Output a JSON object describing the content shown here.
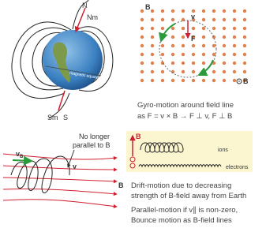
{
  "earth_panel": {
    "north": "N",
    "north_magnetic": "Nm",
    "south_magnetic": "Sm",
    "south": "S",
    "equator": "magnetic equator"
  },
  "gyro_panel": {
    "field": "B",
    "velocity": "v",
    "force": "F",
    "legend": "B",
    "caption_lines": [
      "Gyro-motion around field line",
      "as F = v × B → F ⊥ v, F ⊥ B"
    ]
  },
  "drift_panel": {
    "callout_lines": [
      "No longer",
      "parallel to B"
    ],
    "velocity_main": "v",
    "velocity_sub": "B",
    "velocity": "v",
    "field": "B"
  },
  "ion_panel": {
    "axis_label": "B",
    "ions": "ions",
    "electrons": "electrons"
  },
  "captions": {
    "drift": [
      "Drift-motion due to decreasing",
      "strength of B-field away from Earth"
    ],
    "parallel": [
      "Parallel-motion if v∥ is non-zero,",
      "Bounce motion as B-field lines"
    ]
  }
}
